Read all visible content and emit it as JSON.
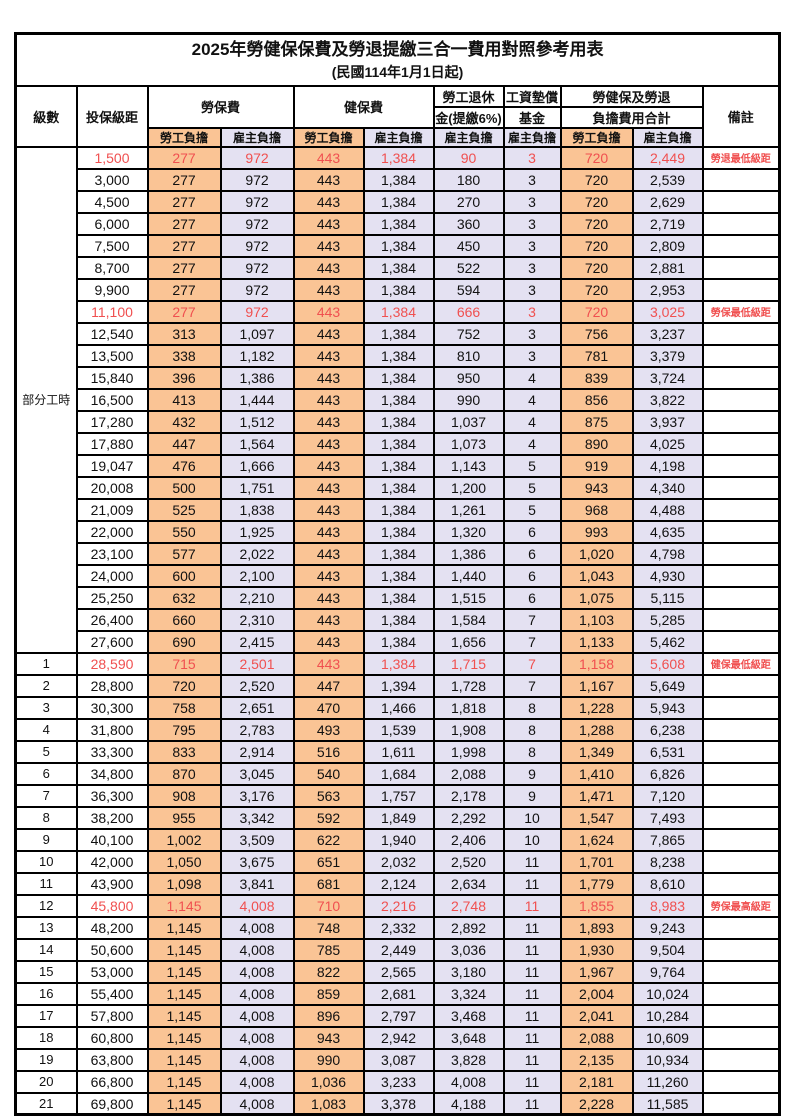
{
  "title": "2025年勞健保保費及勞退提繳三合一費用對照參考用表",
  "subtitle": "(民國114年1月1日起)",
  "colors": {
    "employee_bg": "#FAC495",
    "employer_bg": "#E4E1F2",
    "highlight_text": "#F05050",
    "border": "#000000"
  },
  "header": {
    "level": "級數",
    "bracket": "投保級距",
    "labor_insurance": "勞保費",
    "health_insurance": "健保費",
    "pension_line1": "勞工退休",
    "pension_line2": "金(提繳6%)",
    "wage_fund_line1": "工資墊償",
    "wage_fund_line2": "基金",
    "total_line1": "勞健保及勞退",
    "total_line2": "負擔費用合計",
    "remarks": "備註",
    "employee": "勞工負擔",
    "employer": "雇主負擔"
  },
  "part_time": {
    "label": "部分工時",
    "rowspan": 23
  },
  "rows": [
    {
      "bracket": "1,500",
      "li_emp": "277",
      "li_er": "972",
      "hi_emp": "443",
      "hi_er": "1,384",
      "pension": "90",
      "fund": "3",
      "tot_emp": "720",
      "tot_er": "2,449",
      "note": "勞退最低級距",
      "hl": true
    },
    {
      "bracket": "3,000",
      "li_emp": "277",
      "li_er": "972",
      "hi_emp": "443",
      "hi_er": "1,384",
      "pension": "180",
      "fund": "3",
      "tot_emp": "720",
      "tot_er": "2,539",
      "note": "",
      "hl": false
    },
    {
      "bracket": "4,500",
      "li_emp": "277",
      "li_er": "972",
      "hi_emp": "443",
      "hi_er": "1,384",
      "pension": "270",
      "fund": "3",
      "tot_emp": "720",
      "tot_er": "2,629",
      "note": "",
      "hl": false
    },
    {
      "bracket": "6,000",
      "li_emp": "277",
      "li_er": "972",
      "hi_emp": "443",
      "hi_er": "1,384",
      "pension": "360",
      "fund": "3",
      "tot_emp": "720",
      "tot_er": "2,719",
      "note": "",
      "hl": false
    },
    {
      "bracket": "7,500",
      "li_emp": "277",
      "li_er": "972",
      "hi_emp": "443",
      "hi_er": "1,384",
      "pension": "450",
      "fund": "3",
      "tot_emp": "720",
      "tot_er": "2,809",
      "note": "",
      "hl": false
    },
    {
      "bracket": "8,700",
      "li_emp": "277",
      "li_er": "972",
      "hi_emp": "443",
      "hi_er": "1,384",
      "pension": "522",
      "fund": "3",
      "tot_emp": "720",
      "tot_er": "2,881",
      "note": "",
      "hl": false
    },
    {
      "bracket": "9,900",
      "li_emp": "277",
      "li_er": "972",
      "hi_emp": "443",
      "hi_er": "1,384",
      "pension": "594",
      "fund": "3",
      "tot_emp": "720",
      "tot_er": "2,953",
      "note": "",
      "hl": false
    },
    {
      "bracket": "11,100",
      "li_emp": "277",
      "li_er": "972",
      "hi_emp": "443",
      "hi_er": "1,384",
      "pension": "666",
      "fund": "3",
      "tot_emp": "720",
      "tot_er": "3,025",
      "note": "勞保最低級距",
      "hl": true
    },
    {
      "bracket": "12,540",
      "li_emp": "313",
      "li_er": "1,097",
      "hi_emp": "443",
      "hi_er": "1,384",
      "pension": "752",
      "fund": "3",
      "tot_emp": "756",
      "tot_er": "3,237",
      "note": "",
      "hl": false
    },
    {
      "bracket": "13,500",
      "li_emp": "338",
      "li_er": "1,182",
      "hi_emp": "443",
      "hi_er": "1,384",
      "pension": "810",
      "fund": "3",
      "tot_emp": "781",
      "tot_er": "3,379",
      "note": "",
      "hl": false
    },
    {
      "bracket": "15,840",
      "li_emp": "396",
      "li_er": "1,386",
      "hi_emp": "443",
      "hi_er": "1,384",
      "pension": "950",
      "fund": "4",
      "tot_emp": "839",
      "tot_er": "3,724",
      "note": "",
      "hl": false
    },
    {
      "bracket": "16,500",
      "li_emp": "413",
      "li_er": "1,444",
      "hi_emp": "443",
      "hi_er": "1,384",
      "pension": "990",
      "fund": "4",
      "tot_emp": "856",
      "tot_er": "3,822",
      "note": "",
      "hl": false
    },
    {
      "bracket": "17,280",
      "li_emp": "432",
      "li_er": "1,512",
      "hi_emp": "443",
      "hi_er": "1,384",
      "pension": "1,037",
      "fund": "4",
      "tot_emp": "875",
      "tot_er": "3,937",
      "note": "",
      "hl": false
    },
    {
      "bracket": "17,880",
      "li_emp": "447",
      "li_er": "1,564",
      "hi_emp": "443",
      "hi_er": "1,384",
      "pension": "1,073",
      "fund": "4",
      "tot_emp": "890",
      "tot_er": "4,025",
      "note": "",
      "hl": false
    },
    {
      "bracket": "19,047",
      "li_emp": "476",
      "li_er": "1,666",
      "hi_emp": "443",
      "hi_er": "1,384",
      "pension": "1,143",
      "fund": "5",
      "tot_emp": "919",
      "tot_er": "4,198",
      "note": "",
      "hl": false
    },
    {
      "bracket": "20,008",
      "li_emp": "500",
      "li_er": "1,751",
      "hi_emp": "443",
      "hi_er": "1,384",
      "pension": "1,200",
      "fund": "5",
      "tot_emp": "943",
      "tot_er": "4,340",
      "note": "",
      "hl": false
    },
    {
      "bracket": "21,009",
      "li_emp": "525",
      "li_er": "1,838",
      "hi_emp": "443",
      "hi_er": "1,384",
      "pension": "1,261",
      "fund": "5",
      "tot_emp": "968",
      "tot_er": "4,488",
      "note": "",
      "hl": false
    },
    {
      "bracket": "22,000",
      "li_emp": "550",
      "li_er": "1,925",
      "hi_emp": "443",
      "hi_er": "1,384",
      "pension": "1,320",
      "fund": "6",
      "tot_emp": "993",
      "tot_er": "4,635",
      "note": "",
      "hl": false
    },
    {
      "bracket": "23,100",
      "li_emp": "577",
      "li_er": "2,022",
      "hi_emp": "443",
      "hi_er": "1,384",
      "pension": "1,386",
      "fund": "6",
      "tot_emp": "1,020",
      "tot_er": "4,798",
      "note": "",
      "hl": false
    },
    {
      "bracket": "24,000",
      "li_emp": "600",
      "li_er": "2,100",
      "hi_emp": "443",
      "hi_er": "1,384",
      "pension": "1,440",
      "fund": "6",
      "tot_emp": "1,043",
      "tot_er": "4,930",
      "note": "",
      "hl": false
    },
    {
      "bracket": "25,250",
      "li_emp": "632",
      "li_er": "2,210",
      "hi_emp": "443",
      "hi_er": "1,384",
      "pension": "1,515",
      "fund": "6",
      "tot_emp": "1,075",
      "tot_er": "5,115",
      "note": "",
      "hl": false
    },
    {
      "bracket": "26,400",
      "li_emp": "660",
      "li_er": "2,310",
      "hi_emp": "443",
      "hi_er": "1,384",
      "pension": "1,584",
      "fund": "7",
      "tot_emp": "1,103",
      "tot_er": "5,285",
      "note": "",
      "hl": false
    },
    {
      "bracket": "27,600",
      "li_emp": "690",
      "li_er": "2,415",
      "hi_emp": "443",
      "hi_er": "1,384",
      "pension": "1,656",
      "fund": "7",
      "tot_emp": "1,133",
      "tot_er": "5,462",
      "note": "",
      "hl": false
    },
    {
      "level": "1",
      "bracket": "28,590",
      "li_emp": "715",
      "li_er": "2,501",
      "hi_emp": "443",
      "hi_er": "1,384",
      "pension": "1,715",
      "fund": "7",
      "tot_emp": "1,158",
      "tot_er": "5,608",
      "note": "健保最低級距",
      "hl": true
    },
    {
      "level": "2",
      "bracket": "28,800",
      "li_emp": "720",
      "li_er": "2,520",
      "hi_emp": "447",
      "hi_er": "1,394",
      "pension": "1,728",
      "fund": "7",
      "tot_emp": "1,167",
      "tot_er": "5,649",
      "note": "",
      "hl": false
    },
    {
      "level": "3",
      "bracket": "30,300",
      "li_emp": "758",
      "li_er": "2,651",
      "hi_emp": "470",
      "hi_er": "1,466",
      "pension": "1,818",
      "fund": "8",
      "tot_emp": "1,228",
      "tot_er": "5,943",
      "note": "",
      "hl": false
    },
    {
      "level": "4",
      "bracket": "31,800",
      "li_emp": "795",
      "li_er": "2,783",
      "hi_emp": "493",
      "hi_er": "1,539",
      "pension": "1,908",
      "fund": "8",
      "tot_emp": "1,288",
      "tot_er": "6,238",
      "note": "",
      "hl": false
    },
    {
      "level": "5",
      "bracket": "33,300",
      "li_emp": "833",
      "li_er": "2,914",
      "hi_emp": "516",
      "hi_er": "1,611",
      "pension": "1,998",
      "fund": "8",
      "tot_emp": "1,349",
      "tot_er": "6,531",
      "note": "",
      "hl": false
    },
    {
      "level": "6",
      "bracket": "34,800",
      "li_emp": "870",
      "li_er": "3,045",
      "hi_emp": "540",
      "hi_er": "1,684",
      "pension": "2,088",
      "fund": "9",
      "tot_emp": "1,410",
      "tot_er": "6,826",
      "note": "",
      "hl": false
    },
    {
      "level": "7",
      "bracket": "36,300",
      "li_emp": "908",
      "li_er": "3,176",
      "hi_emp": "563",
      "hi_er": "1,757",
      "pension": "2,178",
      "fund": "9",
      "tot_emp": "1,471",
      "tot_er": "7,120",
      "note": "",
      "hl": false
    },
    {
      "level": "8",
      "bracket": "38,200",
      "li_emp": "955",
      "li_er": "3,342",
      "hi_emp": "592",
      "hi_er": "1,849",
      "pension": "2,292",
      "fund": "10",
      "tot_emp": "1,547",
      "tot_er": "7,493",
      "note": "",
      "hl": false
    },
    {
      "level": "9",
      "bracket": "40,100",
      "li_emp": "1,002",
      "li_er": "3,509",
      "hi_emp": "622",
      "hi_er": "1,940",
      "pension": "2,406",
      "fund": "10",
      "tot_emp": "1,624",
      "tot_er": "7,865",
      "note": "",
      "hl": false
    },
    {
      "level": "10",
      "bracket": "42,000",
      "li_emp": "1,050",
      "li_er": "3,675",
      "hi_emp": "651",
      "hi_er": "2,032",
      "pension": "2,520",
      "fund": "11",
      "tot_emp": "1,701",
      "tot_er": "8,238",
      "note": "",
      "hl": false
    },
    {
      "level": "11",
      "bracket": "43,900",
      "li_emp": "1,098",
      "li_er": "3,841",
      "hi_emp": "681",
      "hi_er": "2,124",
      "pension": "2,634",
      "fund": "11",
      "tot_emp": "1,779",
      "tot_er": "8,610",
      "note": "",
      "hl": false
    },
    {
      "level": "12",
      "bracket": "45,800",
      "li_emp": "1,145",
      "li_er": "4,008",
      "hi_emp": "710",
      "hi_er": "2,216",
      "pension": "2,748",
      "fund": "11",
      "tot_emp": "1,855",
      "tot_er": "8,983",
      "note": "勞保最高級距",
      "hl": true
    },
    {
      "level": "13",
      "bracket": "48,200",
      "li_emp": "1,145",
      "li_er": "4,008",
      "hi_emp": "748",
      "hi_er": "2,332",
      "pension": "2,892",
      "fund": "11",
      "tot_emp": "1,893",
      "tot_er": "9,243",
      "note": "",
      "hl": false
    },
    {
      "level": "14",
      "bracket": "50,600",
      "li_emp": "1,145",
      "li_er": "4,008",
      "hi_emp": "785",
      "hi_er": "2,449",
      "pension": "3,036",
      "fund": "11",
      "tot_emp": "1,930",
      "tot_er": "9,504",
      "note": "",
      "hl": false
    },
    {
      "level": "15",
      "bracket": "53,000",
      "li_emp": "1,145",
      "li_er": "4,008",
      "hi_emp": "822",
      "hi_er": "2,565",
      "pension": "3,180",
      "fund": "11",
      "tot_emp": "1,967",
      "tot_er": "9,764",
      "note": "",
      "hl": false
    },
    {
      "level": "16",
      "bracket": "55,400",
      "li_emp": "1,145",
      "li_er": "4,008",
      "hi_emp": "859",
      "hi_er": "2,681",
      "pension": "3,324",
      "fund": "11",
      "tot_emp": "2,004",
      "tot_er": "10,024",
      "note": "",
      "hl": false
    },
    {
      "level": "17",
      "bracket": "57,800",
      "li_emp": "1,145",
      "li_er": "4,008",
      "hi_emp": "896",
      "hi_er": "2,797",
      "pension": "3,468",
      "fund": "11",
      "tot_emp": "2,041",
      "tot_er": "10,284",
      "note": "",
      "hl": false
    },
    {
      "level": "18",
      "bracket": "60,800",
      "li_emp": "1,145",
      "li_er": "4,008",
      "hi_emp": "943",
      "hi_er": "2,942",
      "pension": "3,648",
      "fund": "11",
      "tot_emp": "2,088",
      "tot_er": "10,609",
      "note": "",
      "hl": false
    },
    {
      "level": "19",
      "bracket": "63,800",
      "li_emp": "1,145",
      "li_er": "4,008",
      "hi_emp": "990",
      "hi_er": "3,087",
      "pension": "3,828",
      "fund": "11",
      "tot_emp": "2,135",
      "tot_er": "10,934",
      "note": "",
      "hl": false
    },
    {
      "level": "20",
      "bracket": "66,800",
      "li_emp": "1,145",
      "li_er": "4,008",
      "hi_emp": "1,036",
      "hi_er": "3,233",
      "pension": "4,008",
      "fund": "11",
      "tot_emp": "2,181",
      "tot_er": "11,260",
      "note": "",
      "hl": false
    },
    {
      "level": "21",
      "bracket": "69,800",
      "li_emp": "1,145",
      "li_er": "4,008",
      "hi_emp": "1,083",
      "hi_er": "3,378",
      "pension": "4,188",
      "fund": "11",
      "tot_emp": "2,228",
      "tot_er": "11,585",
      "note": "",
      "hl": false
    }
  ]
}
